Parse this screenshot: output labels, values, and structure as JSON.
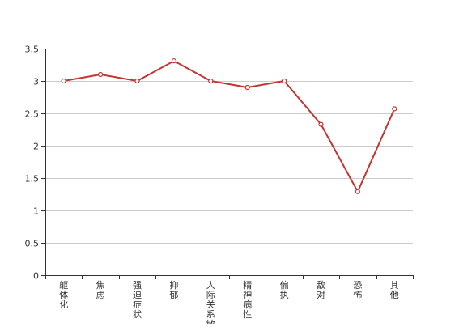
{
  "chart_data": {
    "type": "line",
    "title": "",
    "xlabel": "",
    "ylabel": "",
    "categories": [
      "躯体化",
      "焦虑",
      "强迫症状",
      "抑郁",
      "人际关系敏",
      "精神病性",
      "偏执",
      "敌对",
      "恐怖",
      "其他"
    ],
    "series": [
      {
        "values": [
          3.0,
          3.1,
          3.0,
          3.31,
          3.0,
          2.9,
          3.0,
          2.33,
          1.29,
          2.57
        ]
      }
    ],
    "ylim": [
      0,
      3.5
    ],
    "yticks": [
      "0",
      "0.5",
      "1",
      "1.5",
      "2",
      "2.5",
      "3",
      "3.5"
    ],
    "grid": true,
    "legend": "none",
    "colors": {
      "line": "#c23531",
      "grid": "#cccccc",
      "axis": "#333333",
      "text": "#333333"
    }
  }
}
